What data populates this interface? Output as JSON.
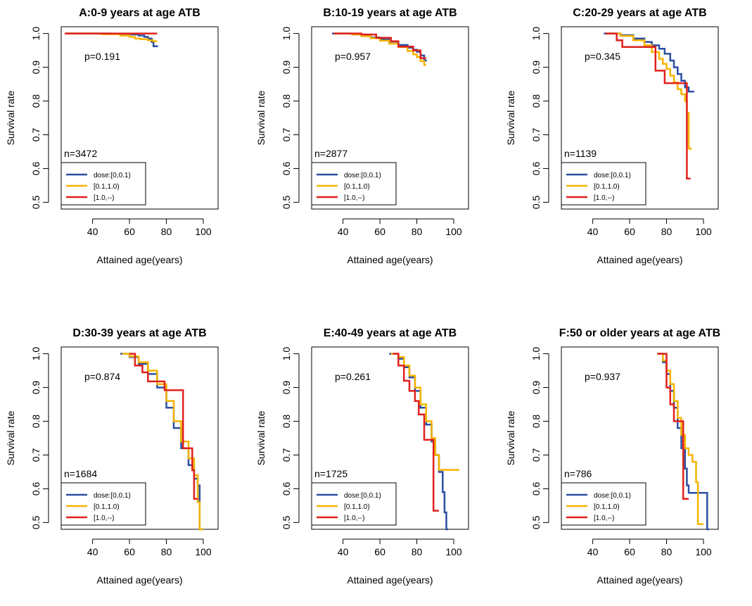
{
  "colors": {
    "dose_0_01": "#2b4fa1",
    "dose_01_10": "#f5b400",
    "dose_10": "#e0201b"
  },
  "chart_data": [
    {
      "type": "line",
      "title": "A:0-9 years at age ATB",
      "xlabel": "Attained age(years)",
      "ylabel": "Survival rate",
      "xlim": [
        23,
        108
      ],
      "ylim": [
        0.48,
        1.02
      ],
      "xticks": [
        "40",
        "60",
        "80",
        "100"
      ],
      "yticks": [
        "0.5",
        "0.6",
        "0.7",
        "0.8",
        "0.9",
        "1.0"
      ],
      "p_text": "p=0.191",
      "n_text": "n=3472",
      "legend": [
        "dose:[0,0.1)",
        "[0.1,1.0)",
        "[1.0,--)"
      ],
      "legend_position": "bottom-left",
      "series": [
        {
          "name": "dose:[0,0.1)",
          "x": [
            25,
            50,
            60,
            65,
            68,
            70,
            72,
            73,
            75
          ],
          "y": [
            1.0,
            0.999,
            0.997,
            0.994,
            0.99,
            0.985,
            0.975,
            0.962,
            0.96
          ]
        },
        {
          "name": "[0.1,1.0)",
          "x": [
            25,
            45,
            55,
            60,
            63,
            66,
            70,
            73,
            75
          ],
          "y": [
            1.0,
            0.998,
            0.994,
            0.99,
            0.985,
            0.983,
            0.98,
            0.977,
            0.977
          ]
        },
        {
          "name": "[1.0,--)",
          "x": [
            25,
            75
          ],
          "y": [
            1.0,
            1.0
          ]
        }
      ]
    },
    {
      "type": "line",
      "title": "B:10-19 years at age ATB",
      "xlabel": "Attained age(years)",
      "ylabel": "Survival rate",
      "xlim": [
        23,
        108
      ],
      "ylim": [
        0.48,
        1.02
      ],
      "xticks": [
        "40",
        "60",
        "80",
        "100"
      ],
      "yticks": [
        "0.5",
        "0.6",
        "0.7",
        "0.8",
        "0.9",
        "1.0"
      ],
      "p_text": "p=0.957",
      "n_text": "n=2877",
      "legend": [
        "dose:[0,0.1)",
        "[0.1,1.0)",
        "[1.0,--)"
      ],
      "legend_position": "bottom-left",
      "series": [
        {
          "name": "dose:[0,0.1)",
          "x": [
            34,
            45,
            50,
            55,
            60,
            65,
            70,
            75,
            78,
            80,
            82,
            84,
            85
          ],
          "y": [
            1.0,
            0.997,
            0.993,
            0.988,
            0.983,
            0.976,
            0.966,
            0.958,
            0.952,
            0.946,
            0.935,
            0.92,
            0.918
          ]
        },
        {
          "name": "[0.1,1.0)",
          "x": [
            35,
            45,
            50,
            55,
            60,
            65,
            70,
            75,
            78,
            80,
            82,
            84,
            85
          ],
          "y": [
            1.0,
            0.997,
            0.992,
            0.986,
            0.979,
            0.97,
            0.96,
            0.948,
            0.938,
            0.93,
            0.918,
            0.907,
            0.907
          ]
        },
        {
          "name": "[1.0,--)",
          "x": [
            35,
            50,
            58,
            66,
            70,
            78,
            82,
            85
          ],
          "y": [
            1.0,
            0.997,
            0.987,
            0.977,
            0.961,
            0.95,
            0.927,
            0.927
          ]
        }
      ]
    },
    {
      "type": "line",
      "title": "C:20-29 years at age ATB",
      "xlabel": "Attained age(years)",
      "ylabel": "Survival rate",
      "xlim": [
        23,
        108
      ],
      "ylim": [
        0.48,
        1.02
      ],
      "xticks": [
        "40",
        "60",
        "80",
        "100"
      ],
      "yticks": [
        "0.5",
        "0.6",
        "0.7",
        "0.8",
        "0.9",
        "1.0"
      ],
      "p_text": "p=0.345",
      "n_text": "n=1139",
      "legend": [
        "dose:[0,0.1)",
        "[0.1,1.0)",
        "[1.0,--)"
      ],
      "legend_position": "bottom-left",
      "series": [
        {
          "name": "dose:[0,0.1)",
          "x": [
            46,
            55,
            62,
            68,
            72,
            76,
            79,
            82,
            84,
            86,
            88,
            90,
            92,
            95
          ],
          "y": [
            1.0,
            0.995,
            0.985,
            0.975,
            0.965,
            0.955,
            0.94,
            0.92,
            0.9,
            0.88,
            0.86,
            0.84,
            0.828,
            0.828
          ]
        },
        {
          "name": "[0.1,1.0)",
          "x": [
            47,
            55,
            62,
            68,
            72,
            76,
            78,
            80,
            82,
            84,
            86,
            88,
            90,
            91,
            92,
            93
          ],
          "y": [
            1.0,
            0.993,
            0.98,
            0.965,
            0.945,
            0.925,
            0.91,
            0.895,
            0.875,
            0.855,
            0.835,
            0.82,
            0.8,
            0.765,
            0.66,
            0.655
          ]
        },
        {
          "name": "[1.0,--)",
          "x": [
            47,
            53,
            56,
            72,
            74,
            79,
            91,
            93
          ],
          "y": [
            1.0,
            0.98,
            0.96,
            0.96,
            0.89,
            0.853,
            0.57,
            0.57
          ]
        }
      ]
    },
    {
      "type": "line",
      "title": "D:30-39 years at age ATB",
      "xlabel": "Attained age(years)",
      "ylabel": "Survival rate",
      "xlim": [
        23,
        108
      ],
      "ylim": [
        0.48,
        1.02
      ],
      "xticks": [
        "40",
        "60",
        "80",
        "100"
      ],
      "yticks": [
        "0.5",
        "0.6",
        "0.7",
        "0.8",
        "0.9",
        "1.0"
      ],
      "p_text": "p=0.874",
      "n_text": "n=1684",
      "legend": [
        "dose:[0,0.1)",
        "[0.1,1.0)",
        "[1.0,--)"
      ],
      "legend_position": "bottom-left",
      "series": [
        {
          "name": "dose:[0,0.1)",
          "x": [
            55,
            60,
            65,
            70,
            75,
            80,
            84,
            88,
            92,
            95,
            97,
            98,
            100
          ],
          "y": [
            1.0,
            0.99,
            0.97,
            0.94,
            0.9,
            0.84,
            0.78,
            0.72,
            0.67,
            0.63,
            0.61,
            0.48,
            0.48
          ]
        },
        {
          "name": "[0.1,1.0)",
          "x": [
            56,
            60,
            65,
            70,
            75,
            80,
            84,
            88,
            92,
            95,
            97,
            98,
            100
          ],
          "y": [
            1.0,
            0.992,
            0.975,
            0.95,
            0.91,
            0.86,
            0.8,
            0.74,
            0.69,
            0.64,
            0.56,
            0.48,
            0.48
          ]
        },
        {
          "name": "[1.0,--)",
          "x": [
            60,
            63,
            67,
            70,
            79,
            88,
            89,
            94,
            95,
            97
          ],
          "y": [
            1.0,
            0.965,
            0.945,
            0.918,
            0.892,
            0.892,
            0.72,
            0.655,
            0.57,
            0.57
          ]
        }
      ]
    },
    {
      "type": "line",
      "title": "E:40-49 years at age ATB",
      "xlabel": "Attained age(years)",
      "ylabel": "Survival rate",
      "xlim": [
        23,
        108
      ],
      "ylim": [
        0.48,
        1.02
      ],
      "xticks": [
        "40",
        "60",
        "80",
        "100"
      ],
      "yticks": [
        "0.5",
        "0.6",
        "0.7",
        "0.8",
        "0.9",
        "1.0"
      ],
      "p_text": "p=0.261",
      "n_text": "n=1725",
      "legend": [
        "dose:[0,0.1)",
        "[0.1,1.0)",
        "[1.0,--)"
      ],
      "legend_position": "bottom-left",
      "series": [
        {
          "name": "dose:[0,0.1)",
          "x": [
            65,
            70,
            73,
            76,
            79,
            82,
            85,
            88,
            90,
            92,
            94,
            95,
            96,
            97
          ],
          "y": [
            1.0,
            0.985,
            0.96,
            0.93,
            0.89,
            0.84,
            0.79,
            0.74,
            0.7,
            0.65,
            0.59,
            0.53,
            0.48,
            0.48
          ]
        },
        {
          "name": "[0.1,1.0)",
          "x": [
            66,
            70,
            73,
            76,
            79,
            82,
            85,
            88,
            90,
            92,
            103
          ],
          "y": [
            1.0,
            0.99,
            0.965,
            0.935,
            0.9,
            0.85,
            0.8,
            0.75,
            0.7,
            0.656,
            0.656
          ]
        },
        {
          "name": "[1.0,--)",
          "x": [
            67,
            70,
            73,
            76,
            79,
            81,
            84,
            88,
            89,
            92
          ],
          "y": [
            1.0,
            0.965,
            0.92,
            0.89,
            0.86,
            0.82,
            0.745,
            0.745,
            0.535,
            0.535
          ]
        }
      ]
    },
    {
      "type": "line",
      "title": "F:50 or older years at age ATB",
      "xlabel": "Attained age(years)",
      "ylabel": "Survival rate",
      "xlim": [
        23,
        108
      ],
      "ylim": [
        0.48,
        1.02
      ],
      "xticks": [
        "40",
        "60",
        "80",
        "100"
      ],
      "yticks": [
        "0.5",
        "0.6",
        "0.7",
        "0.8",
        "0.9",
        "1.0"
      ],
      "p_text": "p=0.937",
      "n_text": "n=786",
      "legend": [
        "dose:[0,0.1)",
        "[0.1,1.0)",
        "[1.0,--)"
      ],
      "legend_position": "bottom-left",
      "series": [
        {
          "name": "dose:[0,0.1)",
          "x": [
            75,
            78,
            80,
            82,
            84,
            86,
            88,
            90,
            91,
            92,
            94,
            102,
            103
          ],
          "y": [
            1.0,
            0.975,
            0.94,
            0.89,
            0.84,
            0.78,
            0.72,
            0.66,
            0.61,
            0.588,
            0.588,
            0.48,
            0.48
          ]
        },
        {
          "name": "[0.1,1.0)",
          "x": [
            75,
            78,
            80,
            82,
            84,
            86,
            88,
            90,
            92,
            94,
            96,
            97,
            100
          ],
          "y": [
            1.0,
            0.98,
            0.95,
            0.91,
            0.86,
            0.81,
            0.76,
            0.72,
            0.7,
            0.68,
            0.62,
            0.495,
            0.495
          ]
        },
        {
          "name": "[1.0,--)",
          "x": [
            75,
            80,
            82,
            84,
            87,
            89,
            92
          ],
          "y": [
            1.0,
            0.9,
            0.85,
            0.8,
            0.8,
            0.57,
            0.57
          ]
        }
      ]
    }
  ]
}
